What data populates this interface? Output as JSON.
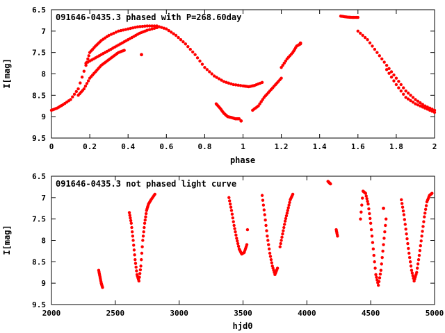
{
  "colors": {
    "points": "#ff0000",
    "axes": "#000000",
    "background": "#ffffff"
  },
  "chart_data": [
    {
      "type": "scatter",
      "title": "091646-0435.3 phased with P=268.60day",
      "xlabel": "phase",
      "ylabel": "I[mag]",
      "xlim": [
        0,
        2
      ],
      "ylim": [
        6.5,
        9.5
      ],
      "y_inverted": true,
      "grid": false,
      "xticks": [
        "0",
        "0.2",
        "0.4",
        "0.6",
        "0.8",
        "1",
        "1.2",
        "1.4",
        "1.6",
        "1.8",
        "2"
      ],
      "yticks": [
        "6.5",
        "7",
        "7.5",
        "8",
        "8.5",
        "9",
        "9.5"
      ],
      "curves": [
        {
          "name": "upper-bright-branch",
          "x": [
            0.0,
            0.03,
            0.06,
            0.1,
            0.14,
            0.18,
            0.2,
            0.23,
            0.26,
            0.3,
            0.35,
            0.4,
            0.45,
            0.5,
            0.55,
            0.6,
            0.65,
            0.7,
            0.75,
            0.8,
            0.85,
            0.9,
            0.95,
            1.0,
            1.03,
            1.06,
            1.1
          ],
          "y": [
            8.85,
            8.8,
            8.72,
            8.6,
            8.35,
            7.8,
            7.5,
            7.35,
            7.22,
            7.1,
            7.0,
            6.95,
            6.9,
            6.88,
            6.88,
            6.95,
            7.1,
            7.3,
            7.55,
            7.85,
            8.05,
            8.18,
            8.25,
            8.28,
            8.3,
            8.27,
            8.2
          ]
        },
        {
          "name": "mid-branch",
          "x": [
            0.18,
            0.22,
            0.26,
            0.3,
            0.34,
            0.38,
            0.42,
            0.46,
            0.5,
            0.55
          ],
          "y": [
            7.75,
            7.65,
            7.55,
            7.45,
            7.35,
            7.25,
            7.15,
            7.05,
            6.98,
            6.92
          ]
        },
        {
          "name": "lower-branch",
          "x": [
            0.14,
            0.17,
            0.2,
            0.23,
            0.26,
            0.29,
            0.32,
            0.35,
            0.38
          ],
          "y": [
            8.5,
            8.35,
            8.1,
            7.95,
            7.8,
            7.7,
            7.6,
            7.5,
            7.45
          ]
        },
        {
          "name": "deep-minimum",
          "x": [
            0.86,
            0.88,
            0.9,
            0.92,
            0.94,
            0.96,
            0.98
          ],
          "y": [
            8.7,
            8.8,
            8.92,
            9.0,
            9.02,
            9.05,
            9.05
          ]
        },
        {
          "name": "rise-after-minimum",
          "x": [
            1.05,
            1.08,
            1.11,
            1.14,
            1.17,
            1.2
          ],
          "y": [
            8.85,
            8.75,
            8.55,
            8.4,
            8.25,
            8.1
          ]
        },
        {
          "name": "late-rise",
          "x": [
            1.2,
            1.23,
            1.26,
            1.28,
            1.3
          ],
          "y": [
            7.85,
            7.65,
            7.5,
            7.35,
            7.3
          ]
        },
        {
          "name": "second-cycle-top",
          "x": [
            1.51,
            1.54,
            1.57,
            1.6
          ],
          "y": [
            6.65,
            6.67,
            6.68,
            6.68
          ]
        },
        {
          "name": "second-cycle-decline",
          "x": [
            1.6,
            1.65,
            1.7,
            1.75,
            1.8,
            1.85,
            1.9,
            1.95,
            2.0
          ],
          "y": [
            7.0,
            7.2,
            7.5,
            7.8,
            8.1,
            8.4,
            8.6,
            8.75,
            8.85
          ]
        },
        {
          "name": "second-cycle-decline-2",
          "x": [
            1.75,
            1.8,
            1.85,
            1.9,
            1.95,
            2.0
          ],
          "y": [
            7.9,
            8.25,
            8.55,
            8.7,
            8.8,
            8.9
          ]
        }
      ],
      "isolated_points": [
        {
          "x": 0.47,
          "y": 7.55
        },
        {
          "x": 0.99,
          "y": 9.1
        },
        {
          "x": 1.3,
          "y": 7.28
        }
      ]
    },
    {
      "type": "scatter",
      "title": "091646-0435.3 not phased light curve",
      "xlabel": "hjd0",
      "ylabel": "I[mag]",
      "xlim": [
        2000,
        5000
      ],
      "ylim": [
        6.5,
        9.5
      ],
      "y_inverted": true,
      "grid": false,
      "xticks": [
        "2000",
        "2500",
        "3000",
        "3500",
        "4000",
        "4500",
        "5000"
      ],
      "yticks": [
        "6.5",
        "7",
        "7.5",
        "8",
        "8.5",
        "9",
        "9.5"
      ],
      "curves": [
        {
          "name": "season-1",
          "x": [
            2370,
            2380,
            2390,
            2400
          ],
          "y": [
            8.7,
            8.85,
            9.0,
            9.1
          ]
        },
        {
          "name": "season-2",
          "x": [
            2610,
            2625,
            2640,
            2655,
            2670,
            2685,
            2700,
            2715,
            2730,
            2745,
            2760,
            2780,
            2810
          ],
          "y": [
            7.35,
            7.6,
            8.0,
            8.45,
            8.8,
            8.95,
            8.6,
            8.0,
            7.6,
            7.3,
            7.15,
            7.05,
            6.92
          ]
        },
        {
          "name": "season-3",
          "x": [
            3390,
            3410,
            3430,
            3450,
            3470,
            3490,
            3510,
            3530
          ],
          "y": [
            7.0,
            7.3,
            7.65,
            7.95,
            8.2,
            8.32,
            8.28,
            8.1
          ]
        },
        {
          "name": "season-3b",
          "x": [
            3535
          ],
          "y": [
            7.75
          ]
        },
        {
          "name": "season-4",
          "x": [
            3650,
            3670,
            3690,
            3710,
            3730,
            3750,
            3770
          ],
          "y": [
            6.95,
            7.4,
            7.9,
            8.3,
            8.6,
            8.8,
            8.65
          ]
        },
        {
          "name": "season-4-rise",
          "x": [
            3790,
            3810,
            3830,
            3850,
            3870,
            3890
          ],
          "y": [
            8.15,
            7.85,
            7.55,
            7.3,
            7.05,
            6.92
          ]
        },
        {
          "name": "season-5",
          "x": [
            4165,
            4175,
            4185
          ],
          "y": [
            6.62,
            6.65,
            6.68
          ]
        },
        {
          "name": "season-5b",
          "x": [
            4230,
            4240
          ],
          "y": [
            7.75,
            7.9
          ]
        },
        {
          "name": "season-6",
          "x": [
            4420,
            4440,
            4460,
            4480,
            4500,
            4520,
            4540,
            4560,
            4580,
            4600,
            4620
          ],
          "y": [
            7.5,
            6.85,
            6.9,
            7.15,
            7.6,
            8.2,
            8.8,
            9.05,
            8.7,
            8.1,
            7.5
          ]
        },
        {
          "name": "season-7",
          "x": [
            4740,
            4760,
            4780,
            4800,
            4820,
            4840,
            4860,
            4880,
            4900,
            4920,
            4940,
            4960,
            4980
          ],
          "y": [
            7.05,
            7.4,
            7.85,
            8.3,
            8.7,
            8.95,
            8.75,
            8.35,
            7.9,
            7.45,
            7.1,
            6.95,
            6.9
          ]
        }
      ],
      "isolated_points": [
        {
          "x": 4600,
          "y": 7.25
        }
      ]
    }
  ]
}
